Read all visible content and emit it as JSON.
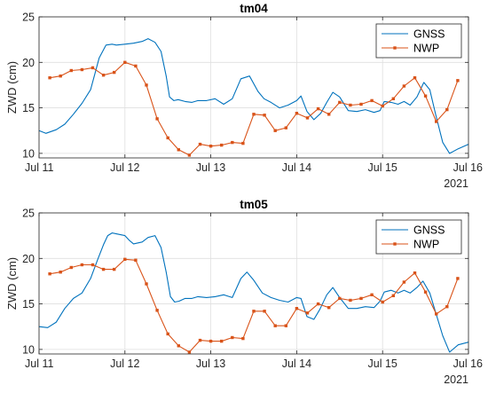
{
  "chart_data": [
    {
      "type": "line",
      "title": "tm04",
      "xlabel": "",
      "ylabel": "ZWD (cm)",
      "xlim": [
        11,
        16
      ],
      "ylim": [
        9.5,
        25
      ],
      "x_ticks": [
        11,
        12,
        13,
        14,
        15,
        16
      ],
      "x_tick_labels": [
        "Jul 11",
        "Jul 12",
        "Jul 13",
        "Jul 14",
        "Jul 15",
        "Jul 16"
      ],
      "y_ticks": [
        10,
        15,
        20,
        25
      ],
      "y_tick_labels": [
        "10",
        "15",
        "20",
        "25"
      ],
      "year_label": "2021",
      "grid": true,
      "legend_location": "top-right",
      "series": [
        {
          "name": "GNSS",
          "color": "#0072BD",
          "marker": "none",
          "x": [
            11.0,
            11.08,
            11.2,
            11.3,
            11.4,
            11.5,
            11.6,
            11.7,
            11.78,
            11.85,
            11.9,
            12.0,
            12.1,
            12.2,
            12.27,
            12.35,
            12.42,
            12.48,
            12.52,
            12.57,
            12.62,
            12.7,
            12.78,
            12.85,
            12.95,
            13.05,
            13.15,
            13.25,
            13.35,
            13.45,
            13.55,
            13.62,
            13.7,
            13.8,
            13.9,
            14.0,
            14.05,
            14.12,
            14.2,
            14.28,
            14.35,
            14.42,
            14.5,
            14.6,
            14.7,
            14.8,
            14.9,
            14.97,
            15.02,
            15.1,
            15.18,
            15.25,
            15.32,
            15.4,
            15.48,
            15.55,
            15.62,
            15.7,
            15.78,
            15.88,
            16.0
          ],
          "y": [
            12.5,
            12.2,
            12.6,
            13.2,
            14.3,
            15.5,
            17.0,
            20.5,
            21.9,
            22.0,
            21.9,
            22.0,
            22.1,
            22.3,
            22.6,
            22.2,
            21.2,
            18.5,
            16.2,
            15.8,
            15.9,
            15.7,
            15.6,
            15.8,
            15.8,
            16.0,
            15.4,
            16.0,
            18.2,
            18.5,
            16.8,
            16.0,
            15.6,
            15.0,
            15.3,
            15.8,
            16.3,
            14.6,
            13.7,
            14.4,
            15.6,
            16.7,
            16.2,
            14.7,
            14.6,
            14.8,
            14.5,
            14.7,
            15.7,
            15.6,
            15.4,
            15.7,
            15.3,
            16.2,
            17.8,
            17.0,
            14.2,
            11.2,
            10.0,
            10.5,
            11.0
          ]
        },
        {
          "name": "NWP",
          "color": "#D95319",
          "marker": "square",
          "x": [
            11.125,
            11.25,
            11.375,
            11.5,
            11.625,
            11.75,
            11.875,
            12.0,
            12.125,
            12.25,
            12.375,
            12.5,
            12.625,
            12.75,
            12.875,
            13.0,
            13.125,
            13.25,
            13.375,
            13.5,
            13.625,
            13.75,
            13.875,
            14.0,
            14.125,
            14.25,
            14.375,
            14.5,
            14.625,
            14.75,
            14.875,
            15.0,
            15.125,
            15.25,
            15.375,
            15.5,
            15.625,
            15.75,
            15.875
          ],
          "y": [
            18.3,
            18.5,
            19.1,
            19.2,
            19.4,
            18.6,
            18.9,
            20.0,
            19.6,
            17.5,
            13.8,
            11.7,
            10.4,
            9.8,
            11.0,
            10.8,
            10.9,
            11.2,
            11.1,
            14.3,
            14.2,
            12.5,
            12.8,
            14.4,
            13.9,
            14.9,
            14.3,
            15.6,
            15.3,
            15.4,
            15.8,
            15.2,
            16.0,
            17.4,
            18.3,
            16.3,
            13.5,
            14.8,
            18.0
          ]
        }
      ]
    },
    {
      "type": "line",
      "title": "tm05",
      "xlabel": "",
      "ylabel": "ZWD (cm)",
      "xlim": [
        11,
        16
      ],
      "ylim": [
        9.5,
        25
      ],
      "x_ticks": [
        11,
        12,
        13,
        14,
        15,
        16
      ],
      "x_tick_labels": [
        "Jul 11",
        "Jul 12",
        "Jul 13",
        "Jul 14",
        "Jul 15",
        "Jul 16"
      ],
      "y_ticks": [
        10,
        15,
        20,
        25
      ],
      "y_tick_labels": [
        "10",
        "15",
        "20",
        "25"
      ],
      "year_label": "2021",
      "grid": true,
      "legend_location": "top-right",
      "series": [
        {
          "name": "GNSS",
          "color": "#0072BD",
          "marker": "none",
          "x": [
            11.0,
            11.1,
            11.2,
            11.3,
            11.4,
            11.5,
            11.6,
            11.68,
            11.75,
            11.8,
            11.85,
            11.9,
            12.0,
            12.05,
            12.1,
            12.2,
            12.27,
            12.35,
            12.42,
            12.48,
            12.53,
            12.58,
            12.63,
            12.7,
            12.78,
            12.85,
            12.95,
            13.05,
            13.15,
            13.25,
            13.35,
            13.42,
            13.5,
            13.6,
            13.7,
            13.8,
            13.9,
            14.0,
            14.05,
            14.12,
            14.2,
            14.27,
            14.35,
            14.42,
            14.5,
            14.6,
            14.7,
            14.8,
            14.9,
            14.97,
            15.02,
            15.1,
            15.18,
            15.25,
            15.32,
            15.4,
            15.47,
            15.55,
            15.62,
            15.7,
            15.78,
            15.88,
            16.0
          ],
          "y": [
            12.5,
            12.4,
            13.0,
            14.5,
            15.6,
            16.2,
            17.8,
            19.8,
            21.5,
            22.5,
            22.8,
            22.7,
            22.5,
            22.0,
            21.6,
            21.8,
            22.3,
            22.5,
            21.2,
            18.5,
            15.8,
            15.2,
            15.3,
            15.6,
            15.6,
            15.8,
            15.7,
            15.8,
            16.0,
            15.7,
            17.8,
            18.5,
            17.6,
            16.2,
            15.7,
            15.4,
            15.2,
            15.7,
            15.6,
            13.6,
            13.3,
            14.4,
            16.0,
            16.8,
            15.7,
            14.5,
            14.5,
            14.7,
            14.6,
            15.3,
            16.3,
            16.5,
            16.2,
            16.5,
            16.2,
            16.8,
            17.5,
            16.2,
            14.0,
            11.5,
            9.7,
            10.5,
            10.8
          ]
        },
        {
          "name": "NWP",
          "color": "#D95319",
          "marker": "square",
          "x": [
            11.125,
            11.25,
            11.375,
            11.5,
            11.625,
            11.75,
            11.875,
            12.0,
            12.125,
            12.25,
            12.375,
            12.5,
            12.625,
            12.75,
            12.875,
            13.0,
            13.125,
            13.25,
            13.375,
            13.5,
            13.625,
            13.75,
            13.875,
            14.0,
            14.125,
            14.25,
            14.375,
            14.5,
            14.625,
            14.75,
            14.875,
            15.0,
            15.125,
            15.25,
            15.375,
            15.5,
            15.625,
            15.75,
            15.875
          ],
          "y": [
            18.3,
            18.5,
            19.0,
            19.3,
            19.3,
            18.8,
            18.8,
            19.9,
            19.8,
            17.2,
            14.3,
            11.7,
            10.4,
            9.7,
            11.0,
            10.9,
            10.9,
            11.3,
            11.2,
            14.2,
            14.2,
            12.6,
            12.6,
            14.5,
            14.0,
            15.0,
            14.6,
            15.6,
            15.4,
            15.6,
            16.0,
            15.2,
            15.9,
            17.4,
            18.4,
            16.3,
            13.9,
            14.7,
            17.8
          ]
        }
      ]
    }
  ]
}
